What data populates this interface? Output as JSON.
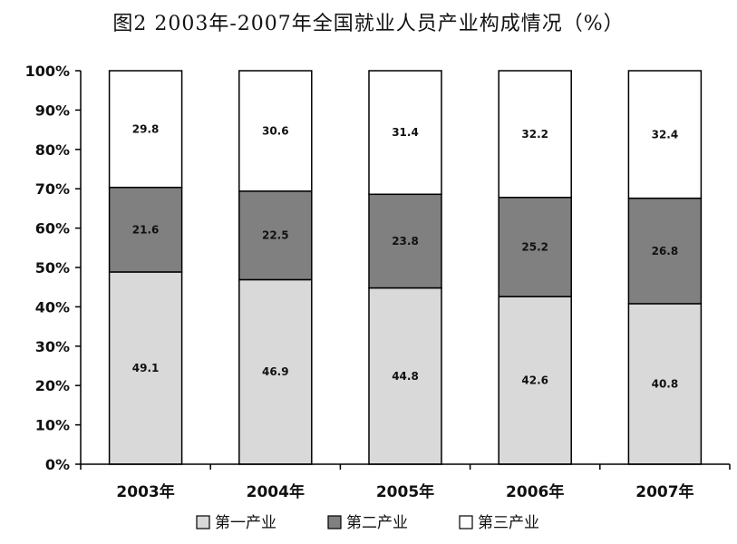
{
  "title": "图2    2003年-2007年全国就业人员产业构成情况（%）",
  "chart_data": {
    "type": "bar",
    "stacked": "percent",
    "title": "图2    2003年-2007年全国就业人员产业构成情况（%）",
    "categories": [
      "2003年",
      "2004年",
      "2005年",
      "2006年",
      "2007年"
    ],
    "series": [
      {
        "name": "第一产业",
        "values": [
          49.1,
          46.9,
          44.8,
          42.6,
          40.8
        ],
        "color": "#d9d9d9"
      },
      {
        "name": "第二产业",
        "values": [
          21.6,
          22.5,
          23.8,
          25.2,
          26.8
        ],
        "color": "#808080"
      },
      {
        "name": "第三产业",
        "values": [
          29.8,
          30.6,
          31.4,
          32.2,
          32.4
        ],
        "color": "#ffffff"
      }
    ],
    "ylim": [
      0,
      100
    ],
    "yticks": [
      "0%",
      "10%",
      "20%",
      "30%",
      "40%",
      "50%",
      "60%",
      "70%",
      "80%",
      "90%",
      "100%"
    ],
    "legend": "bottom",
    "grid": false
  }
}
